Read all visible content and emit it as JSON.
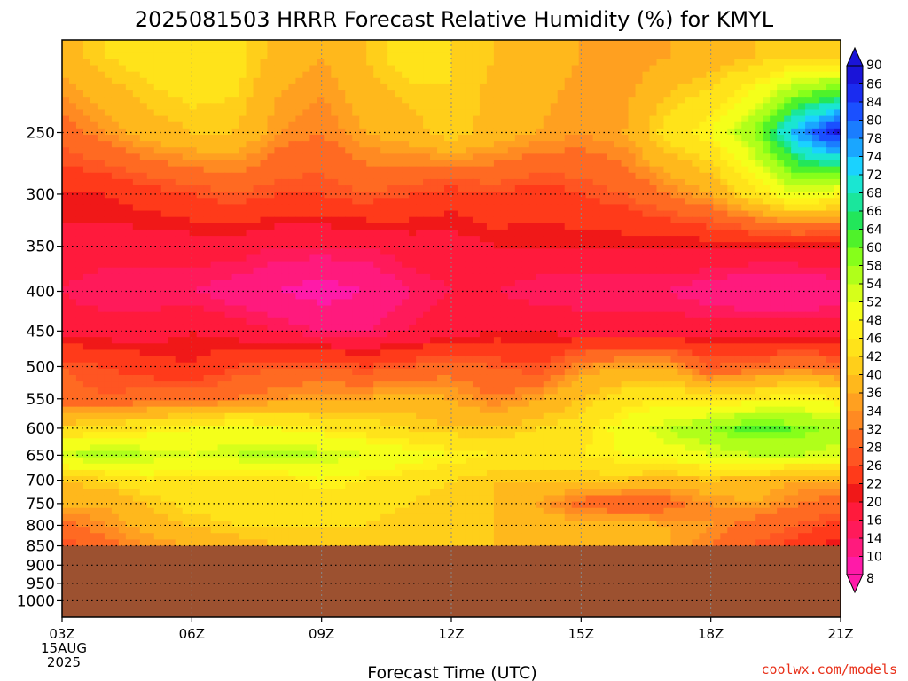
{
  "chart_data": {
    "type": "heatmap",
    "title": "2025081503 HRRR Forecast Relative Humidity (%) for KMYL",
    "xlabel": "Forecast Time (UTC)",
    "ylabel": "",
    "credit": "coolwx.com/models",
    "x_ticks": [
      "03Z",
      "06Z",
      "09Z",
      "12Z",
      "15Z",
      "18Z",
      "21Z"
    ],
    "x_first_sub": [
      "15AUG",
      "2025"
    ],
    "x_hours": [
      3,
      4,
      5,
      6,
      7,
      8,
      9,
      10,
      11,
      12,
      13,
      14,
      15,
      16,
      17,
      18,
      19,
      20,
      21
    ],
    "y_ticks": [
      250,
      300,
      350,
      400,
      450,
      500,
      550,
      600,
      650,
      700,
      750,
      800,
      850,
      900,
      950,
      1000
    ],
    "y_scale": "log",
    "y_range": [
      1050,
      190
    ],
    "grid": true,
    "ground_below_hpa": 850,
    "ground_color": "#9c5130",
    "colorbar": {
      "levels": [
        8,
        10,
        14,
        16,
        20,
        22,
        26,
        28,
        32,
        34,
        36,
        40,
        42,
        46,
        48,
        52,
        54,
        58,
        60,
        64,
        66,
        68,
        72,
        74,
        78,
        80,
        84,
        86,
        90
      ],
      "colors": [
        "#ff1aa8",
        "#ff1a7d",
        "#ff1a5a",
        "#ff1a3c",
        "#f01818",
        "#ff3a1a",
        "#ff5522",
        "#ff6a22",
        "#ff8a22",
        "#ffa020",
        "#ffb81c",
        "#ffcf1a",
        "#ffe31a",
        "#fff21a",
        "#f4ff1a",
        "#d6ff1a",
        "#b0ff1a",
        "#86ff1a",
        "#4ff22a",
        "#22e65a",
        "#1ae69c",
        "#1ae6d2",
        "#1ad2ff",
        "#1aa6ff",
        "#1a7dff",
        "#1a50ff",
        "#1a2cf0",
        "#1a14d8"
      ]
    },
    "pressure_levels": [
      200,
      250,
      300,
      350,
      400,
      450,
      500,
      550,
      600,
      650,
      700,
      750,
      800,
      850
    ],
    "rh": [
      [
        38,
        42,
        44,
        46,
        44,
        38,
        36,
        40,
        44,
        42,
        40,
        38,
        36,
        34,
        36,
        38,
        40,
        42,
        40
      ],
      [
        30,
        34,
        38,
        40,
        40,
        34,
        32,
        36,
        38,
        42,
        38,
        36,
        34,
        36,
        44,
        48,
        58,
        76,
        88
      ],
      [
        22,
        22,
        24,
        26,
        28,
        26,
        26,
        28,
        26,
        24,
        26,
        24,
        26,
        28,
        32,
        36,
        44,
        52,
        48
      ],
      [
        18,
        18,
        18,
        18,
        18,
        16,
        16,
        16,
        18,
        18,
        20,
        20,
        20,
        20,
        20,
        20,
        20,
        20,
        20
      ],
      [
        16,
        14,
        14,
        14,
        12,
        10,
        8,
        10,
        14,
        16,
        16,
        14,
        14,
        14,
        14,
        12,
        10,
        10,
        12
      ],
      [
        18,
        18,
        18,
        20,
        18,
        16,
        14,
        14,
        16,
        18,
        20,
        20,
        18,
        18,
        18,
        18,
        18,
        18,
        18
      ],
      [
        28,
        26,
        24,
        22,
        26,
        28,
        28,
        26,
        28,
        30,
        28,
        26,
        34,
        36,
        36,
        28,
        30,
        32,
        30
      ],
      [
        30,
        28,
        30,
        30,
        32,
        34,
        36,
        36,
        38,
        36,
        32,
        36,
        40,
        44,
        46,
        44,
        46,
        48,
        46
      ],
      [
        42,
        44,
        46,
        48,
        50,
        48,
        46,
        44,
        42,
        40,
        40,
        42,
        44,
        50,
        54,
        58,
        62,
        60,
        56
      ],
      [
        54,
        56,
        54,
        52,
        54,
        56,
        54,
        52,
        50,
        48,
        46,
        44,
        46,
        48,
        50,
        52,
        54,
        54,
        52
      ],
      [
        40,
        42,
        46,
        44,
        44,
        44,
        48,
        46,
        44,
        42,
        40,
        40,
        40,
        40,
        38,
        40,
        38,
        36,
        36
      ],
      [
        38,
        36,
        40,
        44,
        44,
        42,
        42,
        44,
        42,
        40,
        40,
        36,
        30,
        28,
        30,
        34,
        36,
        32,
        30
      ],
      [
        30,
        34,
        38,
        40,
        42,
        42,
        42,
        42,
        40,
        40,
        40,
        38,
        38,
        38,
        36,
        34,
        30,
        28,
        24
      ],
      [
        26,
        30,
        34,
        36,
        38,
        40,
        40,
        40,
        40,
        40,
        40,
        40,
        38,
        38,
        36,
        32,
        28,
        24,
        20
      ]
    ]
  }
}
